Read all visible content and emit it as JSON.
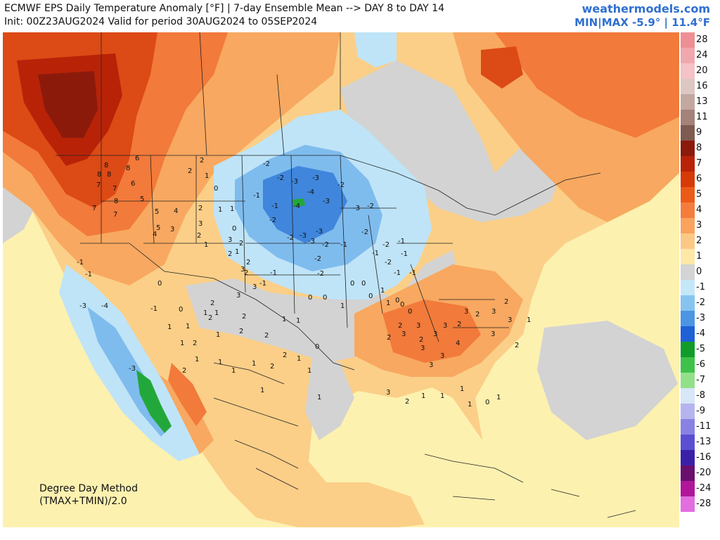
{
  "header": {
    "title": "ECMWF EPS Daily Temperature Anomaly [°F] | 7-day Ensemble Mean --> DAY 8 to DAY 14",
    "subtitle": "Init: 00Z23AUG2024 Valid for period 30AUG2024 to 05SEP2024",
    "brand": "weathermodels.com",
    "minmax": "MIN|MAX -5.9° | 11.4°F"
  },
  "note": {
    "line1": "Degree Day Method",
    "line2": "(TMAX+TMIN)/2.0"
  },
  "legend": [
    {
      "value": "28",
      "color": "#ee8f95"
    },
    {
      "value": "24",
      "color": "#f1a8ad"
    },
    {
      "value": "20",
      "color": "#f5c2c5"
    },
    {
      "value": "16",
      "color": "#dcc7c2"
    },
    {
      "value": "13",
      "color": "#c2a8a1"
    },
    {
      "value": "11",
      "color": "#a38279"
    },
    {
      "value": "9",
      "color": "#7f5a50"
    },
    {
      "value": "8",
      "color": "#8c1a0b"
    },
    {
      "value": "7",
      "color": "#b82308"
    },
    {
      "value": "6",
      "color": "#d63a06"
    },
    {
      "value": "5",
      "color": "#ec5a17"
    },
    {
      "value": "4",
      "color": "#f57d3c"
    },
    {
      "value": "3",
      "color": "#f9a35e"
    },
    {
      "value": "2",
      "color": "#fcc985"
    },
    {
      "value": "1",
      "color": "#fde8a8"
    },
    {
      "value": "0",
      "color": "#d4d4d4"
    },
    {
      "value": "-1",
      "color": "#c4e8f8"
    },
    {
      "value": "-2",
      "color": "#86c4f0"
    },
    {
      "value": "-3",
      "color": "#4b95e3"
    },
    {
      "value": "-4",
      "color": "#1f60d6"
    },
    {
      "value": "-5",
      "color": "#119c2a"
    },
    {
      "value": "-6",
      "color": "#3fc24a"
    },
    {
      "value": "-7",
      "color": "#93e08a"
    },
    {
      "value": "-8",
      "color": "#d8e6f7"
    },
    {
      "value": "-9",
      "color": "#b6b4ee"
    },
    {
      "value": "-11",
      "color": "#8a82e2"
    },
    {
      "value": "-13",
      "color": "#5a4fd2"
    },
    {
      "value": "-16",
      "color": "#3a20a8"
    },
    {
      "value": "-20",
      "color": "#6a0f6e"
    },
    {
      "value": "-24",
      "color": "#b0159a"
    },
    {
      "value": "-28",
      "color": "#e26ee0"
    }
  ],
  "colors": {
    "ocean": "#fdf1b0",
    "warm_light": "#fbcf88",
    "warm": "#f8a860",
    "hot": "#f27a3a",
    "hotter": "#dc4a16",
    "hottest": "#b82308",
    "neutral": "#d3d3d3",
    "cool1": "#bfe4f7",
    "cool2": "#7fbcee",
    "cool3": "#3f86dc",
    "green": "#22a83a"
  },
  "anomaly_labels": [
    {
      "v": "8"
    },
    {
      "v": "8"
    },
    {
      "v": "8"
    },
    {
      "v": "6"
    },
    {
      "v": "8"
    },
    {
      "v": "7"
    },
    {
      "v": "7"
    },
    {
      "v": "6"
    },
    {
      "v": "7"
    },
    {
      "v": "8"
    },
    {
      "v": "7"
    },
    {
      "v": "5"
    },
    {
      "v": "5"
    },
    {
      "v": "4"
    },
    {
      "v": "3"
    },
    {
      "v": "4"
    },
    {
      "v": "5"
    },
    {
      "v": "2"
    },
    {
      "v": "1"
    },
    {
      "v": "2"
    },
    {
      "v": "0"
    },
    {
      "v": "2"
    },
    {
      "v": "1"
    },
    {
      "v": "0"
    },
    {
      "v": "1"
    },
    {
      "v": "3"
    },
    {
      "v": "2"
    },
    {
      "v": "1"
    },
    {
      "v": "3"
    },
    {
      "v": "2"
    },
    {
      "v": "2"
    },
    {
      "v": "1"
    },
    {
      "v": "2"
    },
    {
      "v": "-2"
    },
    {
      "v": "-2"
    },
    {
      "v": "-3"
    },
    {
      "v": "-3"
    },
    {
      "v": "-4"
    },
    {
      "v": "-4"
    },
    {
      "v": "-3"
    },
    {
      "v": "-2"
    },
    {
      "v": "-3"
    },
    {
      "v": "-2"
    },
    {
      "v": "-1"
    },
    {
      "v": "-2"
    },
    {
      "v": "-3"
    },
    {
      "v": "-2"
    },
    {
      "v": "-1"
    },
    {
      "v": "-2"
    },
    {
      "v": "-1"
    },
    {
      "v": "-2"
    },
    {
      "v": "-1"
    },
    {
      "v": "-1"
    },
    {
      "v": "-2"
    },
    {
      "v": "-1"
    },
    {
      "v": "-1"
    },
    {
      "v": "-1"
    },
    {
      "v": "-2"
    },
    {
      "v": "-3"
    },
    {
      "v": "-3"
    },
    {
      "v": "-2"
    },
    {
      "v": "-2"
    },
    {
      "v": "-1"
    },
    {
      "v": "-1"
    },
    {
      "v": "0"
    },
    {
      "v": "0"
    },
    {
      "v": "0"
    },
    {
      "v": "1"
    },
    {
      "v": "1"
    },
    {
      "v": "0"
    },
    {
      "v": "0"
    },
    {
      "v": "0"
    },
    {
      "v": "2"
    },
    {
      "v": "3"
    },
    {
      "v": "2"
    },
    {
      "v": "3"
    },
    {
      "v": "3"
    },
    {
      "v": "4"
    },
    {
      "v": "3"
    },
    {
      "v": "3"
    },
    {
      "v": "2"
    },
    {
      "v": "3"
    },
    {
      "v": "3"
    },
    {
      "v": "3"
    },
    {
      "v": "2"
    },
    {
      "v": "2"
    },
    {
      "v": "3"
    },
    {
      "v": "2"
    },
    {
      "v": "3"
    },
    {
      "v": "3"
    },
    {
      "v": "2"
    },
    {
      "v": "1"
    },
    {
      "v": "1"
    },
    {
      "v": "1"
    },
    {
      "v": "1"
    },
    {
      "v": "2"
    },
    {
      "v": "1"
    },
    {
      "v": "1"
    },
    {
      "v": "1"
    },
    {
      "v": "2"
    },
    {
      "v": "2"
    },
    {
      "v": "1"
    },
    {
      "v": "1"
    },
    {
      "v": "0"
    },
    {
      "v": "1"
    },
    {
      "v": "1"
    },
    {
      "v": "-1"
    },
    {
      "v": "-1"
    },
    {
      "v": "-3"
    },
    {
      "v": "-4"
    },
    {
      "v": "-3"
    },
    {
      "v": "-1"
    },
    {
      "v": "0"
    },
    {
      "v": "0"
    },
    {
      "v": "2"
    },
    {
      "v": "3"
    },
    {
      "v": "3"
    },
    {
      "v": "3"
    },
    {
      "v": "2"
    },
    {
      "v": "2"
    },
    {
      "v": "1"
    },
    {
      "v": "2"
    },
    {
      "v": "2"
    },
    {
      "v": "1"
    },
    {
      "v": "1"
    },
    {
      "v": "0"
    },
    {
      "v": "0"
    },
    {
      "v": "1"
    },
    {
      "v": "1"
    },
    {
      "v": "2"
    },
    {
      "v": "1"
    },
    {
      "v": "1"
    },
    {
      "v": "2"
    },
    {
      "v": "3"
    },
    {
      "v": "2"
    },
    {
      "v": "1"
    },
    {
      "v": "1"
    },
    {
      "v": "1"
    },
    {
      "v": "1"
    },
    {
      "v": "0"
    },
    {
      "v": "1"
    }
  ]
}
